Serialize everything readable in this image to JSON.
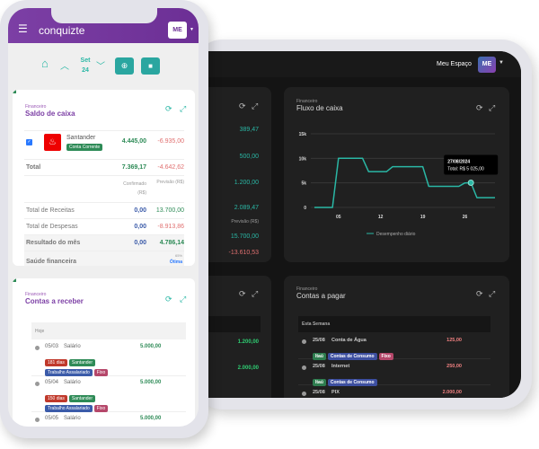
{
  "colors": {
    "purple": "#7c3fa5",
    "teal": "#2ab7a5",
    "green": "#2e8b57",
    "red": "#d9534f",
    "blue": "#3b5ba9",
    "pink": "#b5476a"
  },
  "tablet": {
    "header": {
      "workspace": "Meu Espaço",
      "avatar": "ME"
    },
    "left_card": {
      "values": [
        "389,47",
        "500,00",
        "1.200,00",
        "2.089,47"
      ],
      "col_header": "Previsão (R$)",
      "totals": [
        "15.700,00",
        "-13.610,53"
      ],
      "bottom_values": [
        "1.200,00",
        "2.000,00"
      ]
    },
    "chart_card": {
      "subtitle": "Financeiro",
      "title": "Fluxo de caixa"
    },
    "pay_card": {
      "subtitle": "Financeiro",
      "title": "Contas a pagar",
      "group": "Esta Semana",
      "items": [
        {
          "date": "25/08",
          "name": "Conta de Água",
          "amount": "125,00",
          "tags": [
            "Itaú",
            "Contas de Consumo",
            "Fixo"
          ]
        },
        {
          "date": "25/08",
          "name": "Internet",
          "amount": "250,00",
          "tags": [
            "Itaú",
            "Contas de Consumo"
          ]
        },
        {
          "date": "25/08",
          "name": "PIX",
          "amount": "2.000,00",
          "tags": []
        }
      ]
    }
  },
  "chart_data": {
    "type": "line",
    "x": [
      1,
      2,
      3,
      4,
      5,
      6,
      7,
      8,
      9,
      10,
      11,
      12,
      13,
      14,
      15,
      16,
      17,
      18,
      19,
      20,
      21,
      22,
      23,
      24,
      25,
      26,
      27,
      28,
      29,
      30,
      31
    ],
    "series": [
      {
        "name": "Desempenho diário",
        "values": [
          0,
          0,
          0,
          0,
          10000,
          10000,
          10000,
          10000,
          10000,
          7300,
          7300,
          7300,
          7300,
          8300,
          8300,
          8300,
          8300,
          8300,
          8300,
          4300,
          4300,
          4300,
          4300,
          4300,
          4300,
          5000,
          5025,
          2000,
          2000,
          2000,
          2000
        ]
      }
    ],
    "xticks": [
      "05",
      "12",
      "19",
      "26"
    ],
    "xtick_values": [
      5,
      12,
      19,
      26
    ],
    "yticks": [
      "0",
      "5k",
      "10k",
      "15k"
    ],
    "ytick_values": [
      0,
      5000,
      10000,
      15000
    ],
    "ylim": [
      0,
      15000
    ],
    "xlim": [
      1,
      31
    ],
    "grid": true,
    "legend": "bottom",
    "tooltip": {
      "date": "27/08/2024",
      "total": "Total: R$ 5 025,00",
      "x": 27
    },
    "color": "#2ab7a5"
  },
  "phone": {
    "brand": "conquizte",
    "avatar": "ME",
    "nav": {
      "month": "Set",
      "year": "24"
    },
    "saldo": {
      "subtitle": "Financeiro",
      "title": "Saldo de caixa",
      "bank": {
        "name": "Santander",
        "type": "Conta Corrente",
        "confirmed": "4.445,00",
        "forecast": "-6.935,00"
      },
      "total": {
        "label": "Total",
        "confirmed": "7.369,17",
        "forecast": "-4.642,62"
      },
      "col_confirmed": "Confirmado (R$)",
      "col_forecast": "Previsão (R$)",
      "rows": [
        {
          "label": "Total de Receitas",
          "confirmed": "0,00",
          "forecast": "13.700,00"
        },
        {
          "label": "Total de Despesas",
          "confirmed": "0,00",
          "forecast": "-8.913,86"
        },
        {
          "label": "Resultado do mês",
          "confirmed": "0,00",
          "forecast": "4.786,14"
        }
      ],
      "health": {
        "label": "Saúde financeira",
        "percent": "65%",
        "status": "Ótima"
      }
    },
    "receber": {
      "subtitle": "Financeiro",
      "title": "Contas a receber",
      "group": "Hoje",
      "items": [
        {
          "date": "05/03",
          "name": "Salário",
          "amount": "5.000,00",
          "days": "181 dias",
          "bank": "Santander",
          "category": "Trabalho Assalariado",
          "kind": "Fixo"
        },
        {
          "date": "05/04",
          "name": "Salário",
          "amount": "5.000,00",
          "days": "150 dias",
          "bank": "Santander",
          "category": "Trabalho Assalariado",
          "kind": "Fixo"
        },
        {
          "date": "05/05",
          "name": "Salário",
          "amount": "5.000,00",
          "days": "120 dias",
          "bank": "Santander"
        }
      ]
    }
  }
}
